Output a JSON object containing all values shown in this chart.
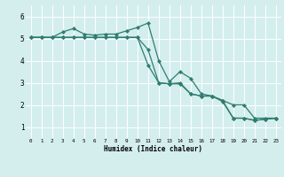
{
  "xlabel": "Humidex (Indice chaleur)",
  "bg_color": "#d4eeee",
  "grid_color": "#ffffff",
  "line_color": "#2e7d6e",
  "xlim": [
    -0.5,
    23.5
  ],
  "ylim": [
    0.5,
    6.5
  ],
  "xtick_labels": [
    "0",
    "1",
    "2",
    "3",
    "4",
    "5",
    "6",
    "7",
    "8",
    "9",
    "10",
    "11",
    "12",
    "13",
    "14",
    "15",
    "16",
    "17",
    "18",
    "19",
    "20",
    "21",
    "22",
    "23"
  ],
  "ytick_labels": [
    "1",
    "2",
    "3",
    "4",
    "5",
    "6"
  ],
  "series": [
    {
      "x": [
        0,
        1,
        2,
        3,
        4,
        5,
        6,
        7,
        8,
        9,
        10,
        11,
        12,
        13,
        14,
        15,
        16,
        17,
        18,
        19,
        20,
        21,
        22,
        23
      ],
      "y": [
        5.05,
        5.05,
        5.05,
        5.05,
        5.05,
        5.05,
        5.05,
        5.05,
        5.05,
        5.05,
        5.05,
        3.8,
        3.0,
        2.95,
        3.0,
        2.5,
        2.4,
        2.4,
        2.15,
        1.4,
        1.4,
        1.3,
        1.35,
        1.4
      ]
    },
    {
      "x": [
        0,
        1,
        2,
        3,
        4,
        5,
        6,
        7,
        8,
        9,
        10,
        11,
        12,
        13,
        14,
        15,
        16,
        17,
        18,
        19,
        20,
        21,
        22,
        23
      ],
      "y": [
        5.05,
        5.05,
        5.05,
        5.3,
        5.45,
        5.2,
        5.15,
        5.2,
        5.2,
        5.35,
        5.5,
        5.7,
        4.0,
        3.05,
        3.5,
        3.2,
        2.5,
        2.4,
        2.2,
        2.0,
        2.0,
        1.4,
        1.4,
        1.4
      ]
    },
    {
      "x": [
        0,
        1,
        2,
        3,
        4,
        5,
        6,
        7,
        8,
        9,
        10,
        11,
        12,
        13,
        14,
        15,
        16,
        17,
        18,
        19,
        20,
        21,
        22,
        23
      ],
      "y": [
        5.05,
        5.05,
        5.05,
        5.05,
        5.05,
        5.05,
        5.05,
        5.05,
        5.05,
        5.05,
        5.05,
        4.5,
        3.0,
        2.95,
        2.95,
        2.5,
        2.4,
        2.4,
        2.2,
        1.4,
        1.4,
        1.3,
        1.35,
        1.4
      ]
    }
  ]
}
